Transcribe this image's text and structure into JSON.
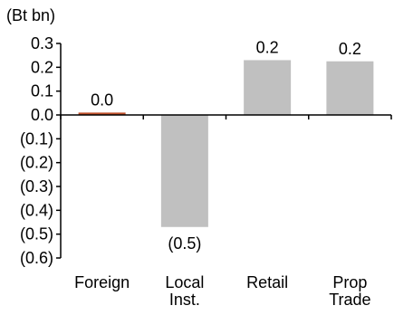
{
  "chart_data": {
    "type": "bar",
    "unit_label": "(Bt bn)",
    "categories": [
      [
        "Foreign"
      ],
      [
        "Local",
        "Inst."
      ],
      [
        "Retail"
      ],
      [
        "Prop",
        "Trade"
      ]
    ],
    "values": [
      0.01,
      -0.47,
      0.23,
      0.225
    ],
    "data_labels": [
      "0.0",
      "(0.5)",
      "0.2",
      "0.2"
    ],
    "bar_colors": [
      "#c0502a",
      "#c0c0c0",
      "#c0c0c0",
      "#c0c0c0"
    ],
    "ylim": [
      -0.6,
      0.3
    ],
    "yticks": [
      0.3,
      0.2,
      0.1,
      0.0,
      -0.1,
      -0.2,
      -0.3,
      -0.4,
      -0.5,
      -0.6
    ],
    "ytick_labels": [
      "0.3",
      "0.2",
      "0.1",
      "0.0",
      "(0.1)",
      "(0.2)",
      "(0.3)",
      "(0.4)",
      "(0.5)",
      "(0.6)"
    ],
    "grid": false,
    "legend": "none"
  }
}
